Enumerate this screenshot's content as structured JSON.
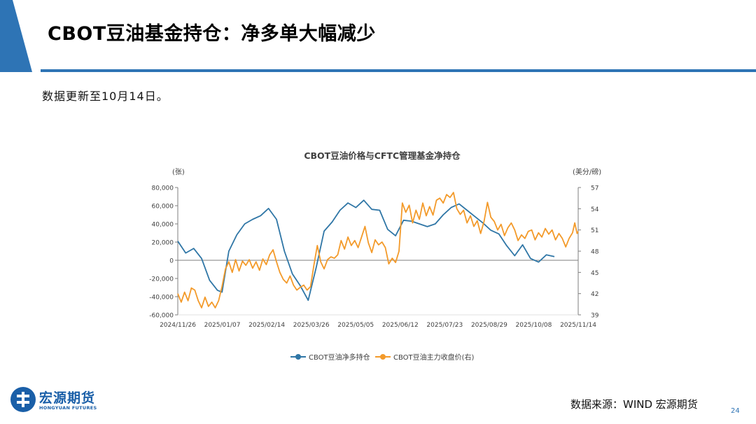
{
  "page": {
    "title": "CBOT豆油基金持仓：净多单大幅减少",
    "note": "数据更新至10月14日。",
    "source": "数据来源：WIND   宏源期货",
    "page_number": "24"
  },
  "logo": {
    "name_cn": "宏源期货",
    "name_en": "HONGYUAN FUTURES"
  },
  "colors": {
    "accent": "#2e74b5",
    "net_long": "#2f76a6",
    "price": "#f39a2a"
  },
  "chart_data": {
    "type": "line",
    "title": "CBOT豆油价格与CFTC管理基金净持仓",
    "ylabel_left": "(张)",
    "ylabel_right": "(美分/磅)",
    "x_start": "2024-11-26",
    "x_end": "2025-11-14",
    "x_ticks": [
      "2024/11/26",
      "2025/01/07",
      "2025/02/14",
      "2025/03/26",
      "2025/05/05",
      "2025/06/12",
      "2025/07/23",
      "2025/08/29",
      "2025/10/08",
      "2025/11/14"
    ],
    "y_left": {
      "min": -60000,
      "max": 80000,
      "ticks": [
        -60000,
        -40000,
        -20000,
        0,
        20000,
        40000,
        60000,
        80000
      ],
      "tick_labels": [
        "-60,000",
        "-40,000",
        "-20,000",
        "0",
        "20,000",
        "40,000",
        "60,000",
        "80,000"
      ]
    },
    "y_right": {
      "min": 39,
      "max": 57,
      "ticks": [
        39,
        42,
        45,
        48,
        51,
        54,
        57
      ],
      "tick_labels": [
        "39",
        "42",
        "45",
        "48",
        "51",
        "54",
        "57"
      ]
    },
    "grid": false,
    "legend_position": "bottom",
    "series": [
      {
        "name": "CBOT豆油净多持仓",
        "axis": "left",
        "color": "#2f76a6",
        "points": [
          [
            "2024-11-26",
            21000
          ],
          [
            "2024-12-03",
            8000
          ],
          [
            "2024-12-10",
            13000
          ],
          [
            "2024-12-17",
            2000
          ],
          [
            "2024-12-24",
            -22000
          ],
          [
            "2024-12-31",
            -33000
          ],
          [
            "2025-01-04",
            -35000
          ],
          [
            "2025-01-10",
            10000
          ],
          [
            "2025-01-17",
            28000
          ],
          [
            "2025-01-24",
            40000
          ],
          [
            "2025-01-31",
            45000
          ],
          [
            "2025-02-07",
            49000
          ],
          [
            "2025-02-14",
            57000
          ],
          [
            "2025-02-21",
            45000
          ],
          [
            "2025-02-28",
            10000
          ],
          [
            "2025-03-07",
            -15000
          ],
          [
            "2025-03-14",
            -28000
          ],
          [
            "2025-03-21",
            -44000
          ],
          [
            "2025-03-28",
            -8000
          ],
          [
            "2025-04-04",
            32000
          ],
          [
            "2025-04-11",
            42000
          ],
          [
            "2025-04-18",
            55000
          ],
          [
            "2025-04-25",
            63000
          ],
          [
            "2025-05-02",
            58000
          ],
          [
            "2025-05-09",
            66000
          ],
          [
            "2025-05-16",
            56000
          ],
          [
            "2025-05-23",
            55000
          ],
          [
            "2025-05-30",
            34000
          ],
          [
            "2025-06-06",
            27000
          ],
          [
            "2025-06-13",
            44000
          ],
          [
            "2025-06-20",
            43000
          ],
          [
            "2025-06-27",
            40000
          ],
          [
            "2025-07-04",
            37000
          ],
          [
            "2025-07-11",
            40000
          ],
          [
            "2025-07-18",
            50000
          ],
          [
            "2025-07-25",
            58000
          ],
          [
            "2025-08-01",
            62000
          ],
          [
            "2025-08-08",
            55000
          ],
          [
            "2025-08-15",
            48000
          ],
          [
            "2025-08-22",
            41000
          ],
          [
            "2025-08-29",
            33000
          ],
          [
            "2025-09-05",
            29000
          ],
          [
            "2025-09-12",
            16000
          ],
          [
            "2025-09-19",
            5000
          ],
          [
            "2025-09-26",
            17000
          ],
          [
            "2025-10-03",
            2000
          ],
          [
            "2025-10-10",
            -2000
          ],
          [
            "2025-10-17",
            6000
          ],
          [
            "2025-10-24",
            4000
          ]
        ]
      },
      {
        "name": "CBOT豆油主力收盘价(右)",
        "axis": "right",
        "color": "#f39a2a",
        "points": [
          [
            "2024-11-26",
            42.0
          ],
          [
            "2024-11-29",
            40.8
          ],
          [
            "2024-12-02",
            42.2
          ],
          [
            "2024-12-05",
            41.0
          ],
          [
            "2024-12-08",
            42.8
          ],
          [
            "2024-12-11",
            42.5
          ],
          [
            "2024-12-14",
            41.0
          ],
          [
            "2024-12-17",
            40.0
          ],
          [
            "2024-12-20",
            41.5
          ],
          [
            "2024-12-23",
            40.2
          ],
          [
            "2024-12-26",
            40.8
          ],
          [
            "2024-12-29",
            40.0
          ],
          [
            "2025-01-01",
            41.0
          ],
          [
            "2025-01-04",
            43.0
          ],
          [
            "2025-01-07",
            45.5
          ],
          [
            "2025-01-10",
            46.5
          ],
          [
            "2025-01-13",
            45.0
          ],
          [
            "2025-01-16",
            46.8
          ],
          [
            "2025-01-19",
            45.2
          ],
          [
            "2025-01-22",
            46.6
          ],
          [
            "2025-01-25",
            46.0
          ],
          [
            "2025-01-28",
            46.8
          ],
          [
            "2025-01-31",
            45.6
          ],
          [
            "2025-02-03",
            46.5
          ],
          [
            "2025-02-06",
            45.3
          ],
          [
            "2025-02-09",
            46.9
          ],
          [
            "2025-02-12",
            46.1
          ],
          [
            "2025-02-15",
            47.5
          ],
          [
            "2025-02-18",
            48.2
          ],
          [
            "2025-02-21",
            46.5
          ],
          [
            "2025-02-24",
            45.0
          ],
          [
            "2025-02-27",
            44.0
          ],
          [
            "2025-03-02",
            43.5
          ],
          [
            "2025-03-05",
            44.5
          ],
          [
            "2025-03-08",
            43.2
          ],
          [
            "2025-03-11",
            42.5
          ],
          [
            "2025-03-14",
            42.9
          ],
          [
            "2025-03-17",
            43.2
          ],
          [
            "2025-03-20",
            42.5
          ],
          [
            "2025-03-23",
            43.0
          ],
          [
            "2025-03-26",
            46.0
          ],
          [
            "2025-03-29",
            48.8
          ],
          [
            "2025-04-01",
            46.5
          ],
          [
            "2025-04-04",
            45.5
          ],
          [
            "2025-04-07",
            46.8
          ],
          [
            "2025-04-10",
            47.2
          ],
          [
            "2025-04-13",
            47.0
          ],
          [
            "2025-04-16",
            47.5
          ],
          [
            "2025-04-19",
            49.5
          ],
          [
            "2025-04-22",
            48.3
          ],
          [
            "2025-04-25",
            50.0
          ],
          [
            "2025-04-28",
            48.8
          ],
          [
            "2025-05-01",
            49.5
          ],
          [
            "2025-05-04",
            48.5
          ],
          [
            "2025-05-07",
            50.0
          ],
          [
            "2025-05-10",
            51.5
          ],
          [
            "2025-05-13",
            49.2
          ],
          [
            "2025-05-16",
            47.8
          ],
          [
            "2025-05-19",
            49.6
          ],
          [
            "2025-05-22",
            48.9
          ],
          [
            "2025-05-25",
            49.3
          ],
          [
            "2025-05-28",
            48.5
          ],
          [
            "2025-05-31",
            46.2
          ],
          [
            "2025-06-03",
            47.0
          ],
          [
            "2025-06-06",
            46.4
          ],
          [
            "2025-06-09",
            48.0
          ],
          [
            "2025-06-12",
            54.8
          ],
          [
            "2025-06-15",
            53.5
          ],
          [
            "2025-06-18",
            54.5
          ],
          [
            "2025-06-21",
            52.0
          ],
          [
            "2025-06-24",
            53.8
          ],
          [
            "2025-06-27",
            52.5
          ],
          [
            "2025-06-30",
            54.8
          ],
          [
            "2025-07-03",
            53.0
          ],
          [
            "2025-07-06",
            54.3
          ],
          [
            "2025-07-09",
            53.1
          ],
          [
            "2025-07-12",
            55.2
          ],
          [
            "2025-07-15",
            55.5
          ],
          [
            "2025-07-18",
            54.8
          ],
          [
            "2025-07-21",
            56.0
          ],
          [
            "2025-07-24",
            55.6
          ],
          [
            "2025-07-27",
            56.3
          ],
          [
            "2025-07-30",
            54.0
          ],
          [
            "2025-08-02",
            53.2
          ],
          [
            "2025-08-05",
            53.8
          ],
          [
            "2025-08-08",
            52.0
          ],
          [
            "2025-08-11",
            53.0
          ],
          [
            "2025-08-14",
            51.5
          ],
          [
            "2025-08-17",
            52.3
          ],
          [
            "2025-08-20",
            50.5
          ],
          [
            "2025-08-23",
            52.2
          ],
          [
            "2025-08-26",
            54.9
          ],
          [
            "2025-08-29",
            52.8
          ],
          [
            "2025-09-01",
            52.2
          ],
          [
            "2025-09-04",
            51.0
          ],
          [
            "2025-09-07",
            51.8
          ],
          [
            "2025-09-10",
            50.2
          ],
          [
            "2025-09-13",
            51.3
          ],
          [
            "2025-09-16",
            52.0
          ],
          [
            "2025-09-19",
            51.0
          ],
          [
            "2025-09-22",
            49.5
          ],
          [
            "2025-09-25",
            50.3
          ],
          [
            "2025-09-28",
            49.8
          ],
          [
            "2025-10-01",
            50.8
          ],
          [
            "2025-10-04",
            51.0
          ],
          [
            "2025-10-07",
            49.6
          ],
          [
            "2025-10-10",
            50.6
          ],
          [
            "2025-10-13",
            50.0
          ],
          [
            "2025-10-16",
            51.2
          ],
          [
            "2025-10-19",
            50.4
          ],
          [
            "2025-10-22",
            51.0
          ],
          [
            "2025-10-25",
            49.6
          ],
          [
            "2025-10-28",
            50.5
          ],
          [
            "2025-10-31",
            49.8
          ],
          [
            "2025-11-03",
            48.6
          ],
          [
            "2025-11-06",
            49.8
          ],
          [
            "2025-11-09",
            50.6
          ],
          [
            "2025-11-11",
            52.0
          ],
          [
            "2025-11-13",
            50.5
          ],
          [
            "2025-11-14",
            50.8
          ]
        ]
      }
    ]
  }
}
